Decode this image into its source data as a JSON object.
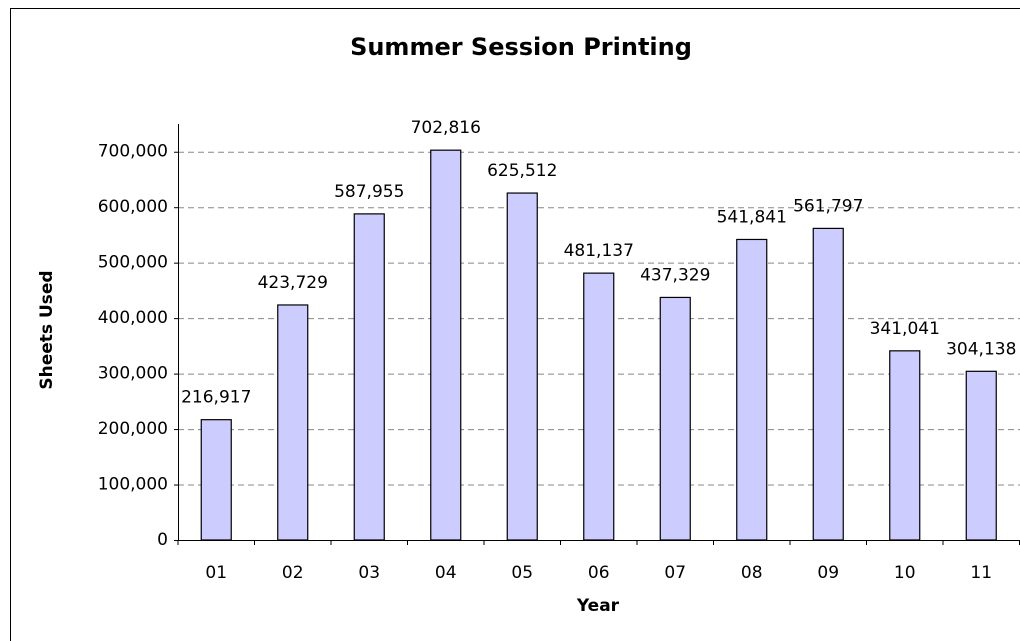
{
  "chart_data": {
    "type": "bar",
    "title": "Summer Session Printing",
    "x_label": "Year",
    "y_label": "Sheets Used",
    "categories": [
      "01",
      "02",
      "03",
      "04",
      "05",
      "06",
      "07",
      "08",
      "09",
      "10",
      "11"
    ],
    "values": [
      216917,
      423729,
      587955,
      702816,
      625512,
      481137,
      437329,
      541841,
      561797,
      341041,
      304138
    ],
    "value_labels": [
      "216,917",
      "423,729",
      "587,955",
      "702,816",
      "625,512",
      "481,137",
      "437,329",
      "541,841",
      "561,797",
      "341,041",
      "304,138"
    ],
    "color": "#ccccff",
    "ylim": [
      0,
      750000
    ],
    "yticks": [
      0,
      {
        "value": 100000,
        "label": "100,000"
      },
      {
        "value": 200000,
        "label": "200,000"
      },
      {
        "value": 300000,
        "label": "300,000"
      },
      {
        "value": 400000,
        "label": "400,000"
      },
      {
        "value": 500000,
        "label": "500,000"
      },
      {
        "value": 600000,
        "label": "600,000"
      },
      {
        "value": 700000,
        "label": "700,000"
      }
    ],
    "grid": true
  }
}
